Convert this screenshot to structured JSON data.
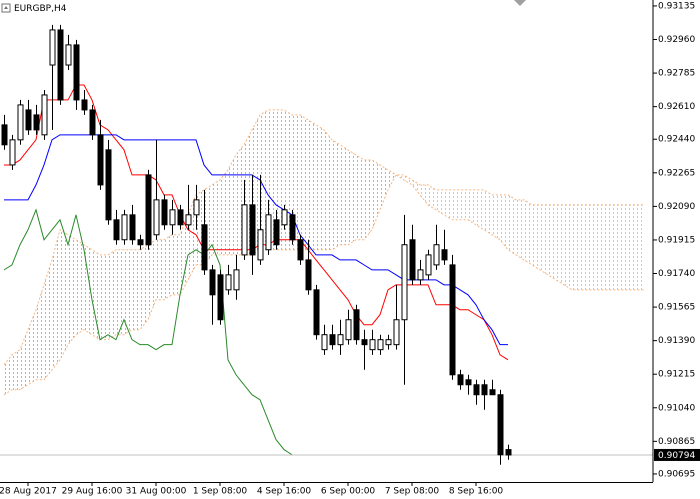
{
  "chart_data": {
    "type": "candlestick",
    "title": "EURGBP,H4",
    "categories": [
      null,
      null,
      null,
      "28 Aug 2017",
      null,
      null,
      null,
      null,
      null,
      null,
      null,
      "29 Aug 16:00",
      null,
      null,
      null,
      null,
      null,
      null,
      null,
      "31 Aug 00:00",
      null,
      null,
      null,
      null,
      null,
      null,
      null,
      "1 Sep 08:00",
      null,
      null,
      null,
      null,
      null,
      null,
      null,
      "4 Sep 16:00",
      null,
      null,
      null,
      null,
      null,
      null,
      null,
      "6 Sep 00:00",
      null,
      null,
      null,
      null,
      null,
      null,
      null,
      "7 Sep 08:00",
      null,
      null,
      null,
      null,
      null,
      null,
      null,
      "8 Sep 16:00",
      null,
      null,
      null,
      null,
      null,
      null,
      null,
      null,
      null,
      null,
      null,
      null,
      null,
      null,
      null,
      null,
      null,
      null,
      null,
      null,
      null,
      null,
      null
    ],
    "candles": {
      "up_color": "#ffffff",
      "down_color": "#000000",
      "open": [
        0.92515,
        0.92306,
        0.92437,
        0.92593,
        0.92567,
        0.92463,
        0.92827,
        0.9301,
        0.92827,
        0.92932,
        0.92645,
        0.92593,
        0.92463,
        0.92385,
        0.9202,
        0.91916,
        0.92046,
        0.91916,
        0.92254,
        0.91942,
        0.92124,
        0.91994,
        0.92072,
        0.91994,
        0.92046,
        0.91994,
        0.91759,
        0.91733,
        0.91655,
        0.91655,
        0.91837,
        0.92098,
        0.91811,
        0.91864,
        0.9202,
        0.91994,
        0.92046,
        0.91916,
        0.91811,
        0.91655,
        0.91343,
        0.91421,
        0.91369,
        0.91395,
        0.91551,
        0.91395,
        0.91343,
        0.91343,
        0.91369,
        0.91369,
        0.91499,
        0.91916,
        0.91707,
        0.91733,
        0.91785,
        0.91864,
        0.91785,
        0.91212,
        0.91186,
        0.9116,
        0.9116,
        0.91134,
        0.91108,
        0.90822,
        null,
        null,
        null,
        null,
        null,
        null,
        null,
        null,
        null,
        null,
        null,
        null,
        null,
        null,
        null,
        null,
        null
      ],
      "high": [
        0.92567,
        0.92463,
        0.92645,
        0.92645,
        0.92619,
        0.92697,
        0.93036,
        0.93036,
        0.92984,
        0.92958,
        0.92697,
        0.92619,
        0.92541,
        0.92437,
        0.92072,
        0.92072,
        0.92098,
        0.91942,
        0.9228,
        0.92437,
        0.9215,
        0.92124,
        0.92098,
        0.92202,
        0.92202,
        0.92176,
        0.91785,
        0.91759,
        0.91785,
        0.91837,
        0.92228,
        0.92254,
        0.92254,
        0.92124,
        0.92072,
        0.92098,
        0.92072,
        0.91942,
        0.91916,
        0.91681,
        0.91473,
        0.91473,
        0.91499,
        0.91551,
        0.91577,
        0.91447,
        0.91447,
        0.91421,
        0.91421,
        0.91681,
        0.92046,
        0.91994,
        0.91811,
        0.91864,
        0.91994,
        0.91968,
        0.91837,
        0.91238,
        0.91212,
        0.91186,
        0.91186,
        0.91186,
        0.91134,
        0.90848,
        null,
        null,
        null,
        null,
        null,
        null,
        null,
        null,
        null,
        null,
        null,
        null,
        null,
        null,
        null,
        null,
        null
      ],
      "low": [
        0.92385,
        0.9228,
        0.92411,
        0.92463,
        0.92463,
        0.92437,
        0.92489,
        0.92619,
        0.92801,
        0.92593,
        0.92567,
        0.92437,
        0.92176,
        0.91994,
        0.9189,
        0.9189,
        0.9189,
        0.91864,
        0.91864,
        0.91916,
        0.91968,
        0.91942,
        0.91968,
        0.91968,
        0.91968,
        0.91733,
        0.91473,
        0.91473,
        0.91629,
        0.91603,
        0.91811,
        0.91733,
        0.91785,
        0.91837,
        0.91864,
        0.91968,
        0.9189,
        0.91785,
        0.91629,
        0.91395,
        0.91316,
        0.91343,
        0.91316,
        0.91369,
        0.91369,
        0.91238,
        0.91316,
        0.91316,
        0.91343,
        0.91343,
        0.9116,
        0.91681,
        0.91681,
        0.91707,
        0.91759,
        0.91785,
        0.91186,
        0.91134,
        0.91108,
        0.91056,
        0.9103,
        0.91108,
        0.90743,
        0.90769,
        null,
        null,
        null,
        null,
        null,
        null,
        null,
        null,
        null,
        null,
        null,
        null,
        null,
        null,
        null,
        null,
        null
      ],
      "close": [
        0.92411,
        0.92437,
        0.92619,
        0.92489,
        0.92489,
        0.92671,
        0.9301,
        0.92645,
        0.92932,
        0.92645,
        0.92593,
        0.92463,
        0.92202,
        0.9202,
        0.91916,
        0.92046,
        0.91916,
        0.9189,
        0.9189,
        0.92124,
        0.91994,
        0.92072,
        0.91994,
        0.92046,
        0.92124,
        0.91759,
        0.91629,
        0.91499,
        0.91733,
        0.91759,
        0.92098,
        0.91837,
        0.91968,
        0.92046,
        0.9189,
        0.92072,
        0.91916,
        0.91811,
        0.91655,
        0.91421,
        0.91421,
        0.91369,
        0.91421,
        0.91499,
        0.91395,
        0.91369,
        0.91395,
        0.91395,
        0.91395,
        0.91499,
        0.9189,
        0.91707,
        0.91759,
        0.91837,
        0.9189,
        0.91811,
        0.91212,
        0.9116,
        0.9116,
        0.91108,
        0.91108,
        0.91108,
        0.90795,
        0.90794,
        null,
        null,
        null,
        null,
        null,
        null,
        null,
        null,
        null,
        null,
        null,
        null,
        null,
        null,
        null,
        null,
        null
      ]
    },
    "lines": [
      {
        "color": "#ff0000",
        "values": [
          0.92306,
          0.92306,
          0.92332,
          0.92385,
          0.92437,
          0.92645,
          0.92645,
          0.92645,
          0.92645,
          0.92723,
          0.92723,
          0.92645,
          0.92515,
          0.92489,
          0.92437,
          0.92385,
          0.92254,
          0.92254,
          0.92254,
          0.92228,
          0.9215,
          0.9215,
          0.92046,
          0.91968,
          0.91942,
          0.91864,
          0.91864,
          0.91864,
          0.91864,
          0.91864,
          0.91864,
          0.91864,
          0.9189,
          0.9189,
          0.91916,
          0.91916,
          0.91916,
          0.91916,
          0.91864,
          0.91811,
          0.91759,
          0.91707,
          0.91655,
          0.91603,
          0.91525,
          0.91473,
          0.91473,
          0.91525,
          0.91655,
          0.91681,
          0.91681,
          0.91681,
          0.91681,
          0.91681,
          0.91577,
          0.91577,
          0.91577,
          0.91551,
          0.91551,
          0.91525,
          0.91499,
          0.91421,
          0.91316,
          0.9129,
          null,
          null,
          null,
          null,
          null,
          null,
          null,
          null,
          null,
          null,
          null,
          null,
          null,
          null,
          null,
          null,
          null
        ]
      },
      {
        "color": "#0000ff",
        "values": [
          0.92124,
          0.92124,
          0.92124,
          0.92124,
          0.92202,
          0.92306,
          0.92437,
          0.92463,
          0.92463,
          0.92463,
          0.92463,
          0.92463,
          0.92463,
          0.92463,
          0.92463,
          0.92437,
          0.92437,
          0.92437,
          0.92437,
          0.92437,
          0.92437,
          0.92437,
          0.92437,
          0.92437,
          0.92437,
          0.92306,
          0.92254,
          0.92254,
          0.92254,
          0.92254,
          0.92254,
          0.92254,
          0.92228,
          0.9215,
          0.92098,
          0.92072,
          0.92046,
          0.91942,
          0.9189,
          0.91837,
          0.91837,
          0.91837,
          0.91811,
          0.91811,
          0.91811,
          0.91785,
          0.91759,
          0.91759,
          0.91759,
          0.91733,
          0.91707,
          0.91707,
          0.91707,
          0.91707,
          0.91707,
          0.91681,
          0.91681,
          0.91655,
          0.91629,
          0.91577,
          0.91499,
          0.91447,
          0.91369,
          0.91369,
          null,
          null,
          null,
          null,
          null,
          null,
          null,
          null,
          null,
          null,
          null,
          null,
          null,
          null,
          null,
          null,
          null
        ]
      },
      {
        "color": "#2a8a2a",
        "values": [
          0.91759,
          0.91785,
          0.9189,
          0.91968,
          0.92072,
          0.91916,
          0.91968,
          0.9202,
          0.9189,
          0.92046,
          0.91864,
          0.91603,
          0.91395,
          0.91421,
          0.91395,
          0.91499,
          0.91395,
          0.91369,
          0.91369,
          0.91343,
          0.91369,
          0.91369,
          0.91629,
          0.91837,
          0.91864,
          0.91837,
          0.9189,
          0.91785,
          0.9129,
          0.91212,
          0.9116,
          0.91108,
          0.91082,
          0.90978,
          0.90874,
          0.90822,
          0.90795,
          null,
          null,
          null,
          null,
          null,
          null,
          null,
          null,
          null,
          null,
          null,
          null,
          null,
          null,
          null,
          null,
          null,
          null,
          null,
          null,
          null,
          null,
          null,
          null,
          null,
          null,
          null,
          null,
          null,
          null,
          null,
          null,
          null,
          null,
          null,
          null,
          null,
          null,
          null,
          null,
          null,
          null,
          null,
          null
        ]
      }
    ],
    "cloud": {
      "colors": [
        "#f4a460",
        "#d8bfd8"
      ],
      "span_a": [
        0.91264,
        0.91316,
        0.91343,
        0.91447,
        0.91551,
        0.91681,
        0.91811,
        0.91968,
        0.91942,
        0.91916,
        0.9189,
        0.91864,
        0.91837,
        0.91837,
        0.91864,
        0.91864,
        0.91864,
        0.91864,
        0.9189,
        0.91916,
        0.91916,
        0.91942,
        0.91942,
        0.92046,
        0.9215,
        0.92176,
        0.92202,
        0.92228,
        0.9228,
        0.92358,
        0.92411,
        0.92489,
        0.92567,
        0.92593,
        0.92593,
        0.92593,
        0.92567,
        0.92567,
        0.92541,
        0.92515,
        0.92489,
        0.92437,
        0.92411,
        0.92385,
        0.92358,
        0.92332,
        0.92332,
        0.92306,
        0.9228,
        0.92254,
        0.92228,
        0.92202,
        0.9215,
        0.92098,
        0.92072,
        0.92046,
        0.9202,
        0.9202,
        0.9202,
        0.91994,
        0.91968,
        0.91942,
        0.91916,
        0.91864,
        0.91837,
        0.91811,
        0.91785,
        0.91759,
        0.91733,
        0.91707,
        0.91681,
        0.91655,
        0.91655,
        0.91655,
        0.91655,
        0.91655,
        0.91655,
        0.91655,
        0.91655,
        0.91655,
        0.91655
      ],
      "span_b": [
        0.91108,
        0.91134,
        0.91134,
        0.9116,
        0.91186,
        0.91186,
        0.91238,
        0.9129,
        0.91369,
        0.91421,
        0.91447,
        0.91421,
        0.91395,
        0.91395,
        0.91421,
        0.91421,
        0.91447,
        0.91447,
        0.91499,
        0.91603,
        0.91603,
        0.91629,
        0.91629,
        0.91707,
        0.91785,
        0.91785,
        0.91837,
        0.91837,
        0.91837,
        0.91837,
        0.91837,
        0.91837,
        0.91864,
        0.91864,
        0.91864,
        0.91864,
        0.91864,
        0.91864,
        0.91864,
        0.91864,
        0.91864,
        0.91864,
        0.9189,
        0.9189,
        0.91916,
        0.91916,
        0.91968,
        0.92072,
        0.92176,
        0.92254,
        0.92254,
        0.92228,
        0.92202,
        0.92202,
        0.92176,
        0.92176,
        0.92176,
        0.92176,
        0.92176,
        0.92176,
        0.92176,
        0.9215,
        0.9215,
        0.9215,
        0.92124,
        0.92124,
        0.92098,
        0.92098,
        0.92098,
        0.92098,
        0.92098,
        0.92098,
        0.92098,
        0.92098,
        0.92098,
        0.92098,
        0.92098,
        0.92098,
        0.92098,
        0.92098,
        0.92098
      ]
    },
    "current_price": 0.90794,
    "ylim": [
      0.90653,
      0.93166
    ],
    "yticks": [
      0.93135,
      {
        "value": 0.9296,
        "label": "0.92960"
      },
      0.92785,
      {
        "value": 0.9261,
        "label": "0.92610"
      },
      {
        "value": 0.9244,
        "label": "0.92440"
      },
      0.92265,
      {
        "value": 0.9209,
        "label": "0.92090"
      },
      0.91915,
      {
        "value": 0.9174,
        "label": "0.91740"
      },
      0.91565,
      {
        "value": 0.9139,
        "label": "0.91390"
      },
      0.91215,
      {
        "value": 0.9104,
        "label": "0.91040"
      },
      0.90865,
      0.90695
    ]
  }
}
